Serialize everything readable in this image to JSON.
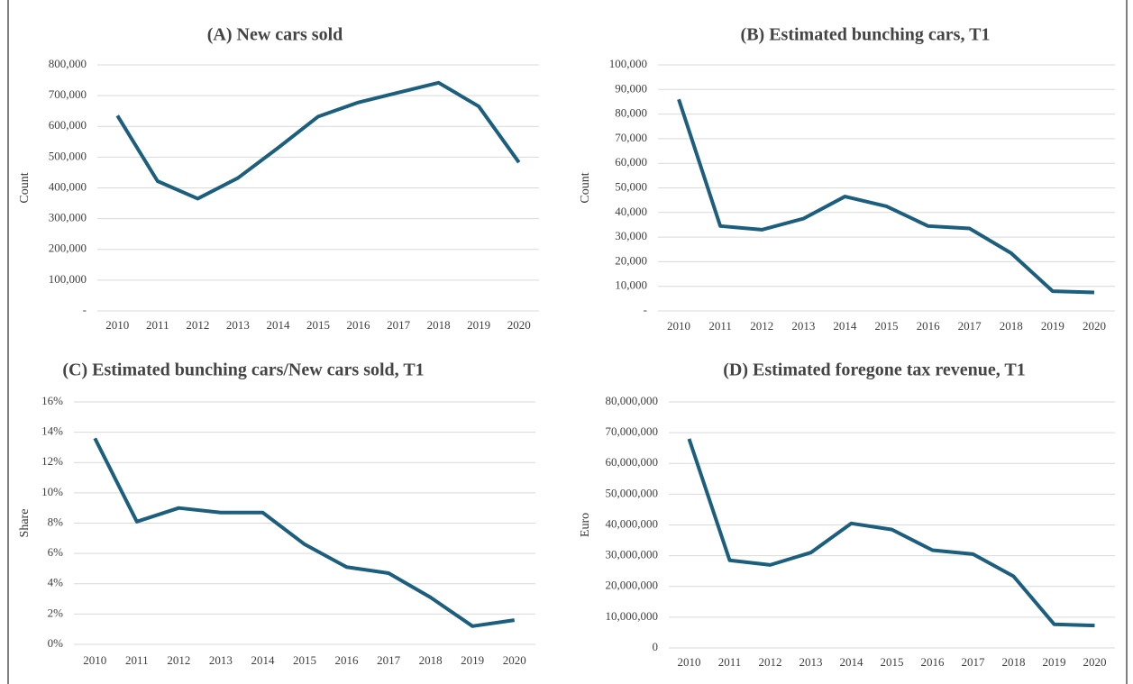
{
  "chart_data": [
    {
      "type": "line",
      "title": "(A) New cars sold",
      "y_label": "Count",
      "categories": [
        "2010",
        "2011",
        "2012",
        "2013",
        "2014",
        "2015",
        "2016",
        "2017",
        "2018",
        "2019",
        "2020"
      ],
      "series": [
        {
          "name": "New cars sold",
          "color": "#1b5e7e",
          "values": [
            635000,
            422000,
            365000,
            432000,
            530000,
            632000,
            678000,
            710000,
            742000,
            665000,
            483000
          ]
        }
      ],
      "ylim": [
        0,
        800000
      ],
      "yticks": [
        {
          "value": 0,
          "label": "-"
        },
        {
          "value": 100000,
          "label": "100,000"
        },
        {
          "value": 200000,
          "label": "200,000"
        },
        {
          "value": 300000,
          "label": "300,000"
        },
        {
          "value": 400000,
          "label": "400,000"
        },
        {
          "value": 500000,
          "label": "500,000"
        },
        {
          "value": 600000,
          "label": "600,000"
        },
        {
          "value": 700000,
          "label": "700,000"
        },
        {
          "value": 800000,
          "label": "800,000"
        }
      ],
      "grid": true
    },
    {
      "type": "line",
      "title": "(B) Estimated bunching cars, T1",
      "y_label": "Count",
      "categories": [
        "2010",
        "2011",
        "2012",
        "2013",
        "2014",
        "2015",
        "2016",
        "2017",
        "2018",
        "2019",
        "2020"
      ],
      "series": [
        {
          "name": "Estimated bunching cars",
          "color": "#1b5e7e",
          "values": [
            86000,
            34500,
            33000,
            37500,
            46500,
            42500,
            34500,
            33500,
            23500,
            8000,
            7500
          ]
        }
      ],
      "ylim": [
        0,
        100000
      ],
      "yticks": [
        {
          "value": 0,
          "label": "-"
        },
        {
          "value": 10000,
          "label": "10,000"
        },
        {
          "value": 20000,
          "label": "20,000"
        },
        {
          "value": 30000,
          "label": "30,000"
        },
        {
          "value": 40000,
          "label": "40,000"
        },
        {
          "value": 50000,
          "label": "50,000"
        },
        {
          "value": 60000,
          "label": "60,000"
        },
        {
          "value": 70000,
          "label": "70,000"
        },
        {
          "value": 80000,
          "label": "80,000"
        },
        {
          "value": 90000,
          "label": "90,000"
        },
        {
          "value": 100000,
          "label": "100,000"
        }
      ],
      "grid": true
    },
    {
      "type": "line",
      "title": "(C) Estimated bunching cars/New cars sold, T1",
      "y_label": "Share",
      "categories": [
        "2010",
        "2011",
        "2012",
        "2013",
        "2014",
        "2015",
        "2016",
        "2017",
        "2018",
        "2019",
        "2020"
      ],
      "series": [
        {
          "name": "Share",
          "color": "#1b5e7e",
          "values": [
            13.6,
            8.1,
            9.0,
            8.7,
            8.7,
            6.6,
            5.1,
            4.7,
            3.1,
            1.2,
            1.6
          ]
        }
      ],
      "ylim": [
        0,
        16
      ],
      "yticks": [
        {
          "value": 0,
          "label": "0%"
        },
        {
          "value": 2,
          "label": "2%"
        },
        {
          "value": 4,
          "label": "4%"
        },
        {
          "value": 6,
          "label": "6%"
        },
        {
          "value": 8,
          "label": "8%"
        },
        {
          "value": 10,
          "label": "10%"
        },
        {
          "value": 12,
          "label": "12%"
        },
        {
          "value": 14,
          "label": "14%"
        },
        {
          "value": 16,
          "label": "16%"
        }
      ],
      "grid": true
    },
    {
      "type": "line",
      "title": "(D) Estimated foregone tax revenue, T1",
      "y_label": "Euro",
      "categories": [
        "2010",
        "2011",
        "2012",
        "2013",
        "2014",
        "2015",
        "2016",
        "2017",
        "2018",
        "2019",
        "2020"
      ],
      "series": [
        {
          "name": "Foregone tax revenue",
          "color": "#1b5e7e",
          "values": [
            68000000,
            28500000,
            27000000,
            31000000,
            40500000,
            38500000,
            31800000,
            30500000,
            23300000,
            7700000,
            7300000
          ]
        }
      ],
      "ylim": [
        0,
        80000000
      ],
      "yticks": [
        0,
        {
          "value": 10000000,
          "label": "10,000,000"
        },
        {
          "value": 20000000,
          "label": "20,000,000"
        },
        {
          "value": 30000000,
          "label": "30,000,000"
        },
        {
          "value": 40000000,
          "label": "40,000,000"
        },
        {
          "value": 50000000,
          "label": "50,000,000"
        },
        {
          "value": 60000000,
          "label": "60,000,000"
        },
        {
          "value": 70000000,
          "label": "70,000,000"
        },
        {
          "value": 80000000,
          "label": "80,000,000"
        }
      ],
      "grid": true
    }
  ]
}
